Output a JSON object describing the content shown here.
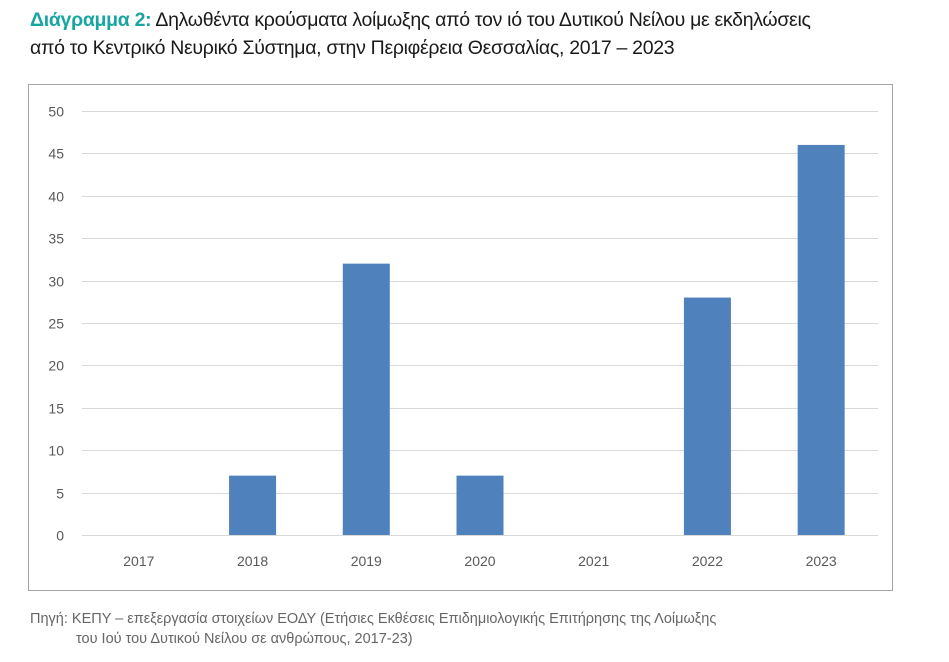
{
  "title": {
    "label": "Διάγραμμα 2:",
    "text_line1": "Δηλωθέντα κρούσματα λοίμωξης από τον ιό του Δυτικού Νείλου με εκδηλώσεις",
    "text_line2": "από το Κεντρικό Νευρικό Σύστημα, στην Περιφέρεια Θεσσαλίας, 2017 – 2023"
  },
  "source": {
    "line1": "Πηγή: ΚΕΠΥ – επεξεργασία στοιχείων ΕΟΔΥ (Ετήσιες Εκθέσεις Επιδημιολογικής Επιτήρησης της Λοίμωξης",
    "line2": "του Ιού του Δυτικού Νείλου σε ανθρώπους, 2017-23)"
  },
  "chart_data": {
    "type": "bar",
    "categories": [
      "2017",
      "2018",
      "2019",
      "2020",
      "2021",
      "2022",
      "2023"
    ],
    "values": [
      0,
      7,
      32,
      7,
      0,
      28,
      46
    ],
    "ylim": [
      0,
      50
    ],
    "yticks": [
      0,
      5,
      10,
      15,
      20,
      25,
      30,
      35,
      40,
      45,
      50
    ],
    "grid": true,
    "colors": {
      "bar": "#4f81bd",
      "grid": "#d9d9d9",
      "title_label": "#19a6a0"
    }
  }
}
